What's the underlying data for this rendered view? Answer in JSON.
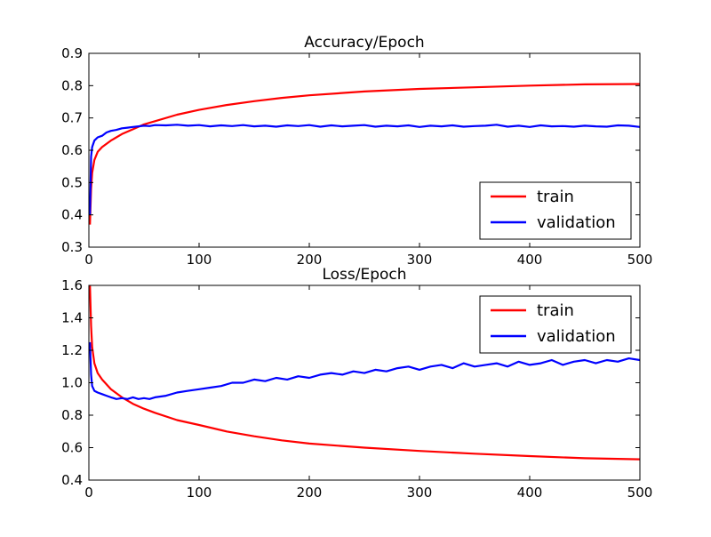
{
  "chart_data": [
    {
      "type": "line",
      "title": "Accuracy/Epoch",
      "xlabel": "",
      "ylabel": "",
      "xlim": [
        0,
        500
      ],
      "ylim": [
        0.3,
        0.9
      ],
      "xticks": [
        0,
        100,
        200,
        300,
        400,
        500
      ],
      "xtick_labels": [
        "0",
        "100",
        "200",
        "300",
        "400",
        "500"
      ],
      "yticks": [
        0.3,
        0.4,
        0.5,
        0.6,
        0.7,
        0.8,
        0.9
      ],
      "ytick_labels": [
        "0.3",
        "0.4",
        "0.5",
        "0.6",
        "0.7",
        "0.8",
        "0.9"
      ],
      "grid": false,
      "legend": "lower-right",
      "series": [
        {
          "name": "train",
          "color": "#ff0000",
          "x": [
            1,
            2,
            3,
            5,
            8,
            12,
            20,
            30,
            40,
            50,
            60,
            80,
            100,
            125,
            150,
            175,
            200,
            250,
            300,
            350,
            400,
            450,
            500
          ],
          "values": [
            0.37,
            0.48,
            0.53,
            0.57,
            0.595,
            0.61,
            0.63,
            0.65,
            0.665,
            0.68,
            0.69,
            0.71,
            0.725,
            0.74,
            0.752,
            0.762,
            0.77,
            0.782,
            0.79,
            0.795,
            0.8,
            0.804,
            0.805
          ]
        },
        {
          "name": "validation",
          "color": "#0000ff",
          "x": [
            1,
            2,
            3,
            5,
            8,
            12,
            16,
            20,
            25,
            30,
            35,
            40,
            45,
            50,
            55,
            60,
            70,
            80,
            90,
            100,
            110,
            120,
            130,
            140,
            150,
            160,
            170,
            180,
            190,
            200,
            210,
            220,
            230,
            240,
            250,
            260,
            270,
            280,
            290,
            300,
            310,
            320,
            330,
            340,
            350,
            360,
            370,
            380,
            390,
            400,
            410,
            420,
            430,
            440,
            450,
            460,
            470,
            480,
            490,
            500
          ],
          "values": [
            0.4,
            0.58,
            0.61,
            0.63,
            0.64,
            0.645,
            0.655,
            0.66,
            0.663,
            0.668,
            0.67,
            0.672,
            0.674,
            0.676,
            0.675,
            0.678,
            0.677,
            0.679,
            0.676,
            0.678,
            0.674,
            0.677,
            0.675,
            0.678,
            0.674,
            0.676,
            0.673,
            0.677,
            0.675,
            0.678,
            0.673,
            0.677,
            0.674,
            0.676,
            0.678,
            0.673,
            0.676,
            0.674,
            0.677,
            0.672,
            0.676,
            0.674,
            0.677,
            0.673,
            0.675,
            0.676,
            0.679,
            0.673,
            0.676,
            0.672,
            0.677,
            0.674,
            0.675,
            0.673,
            0.676,
            0.674,
            0.673,
            0.677,
            0.676,
            0.672
          ]
        }
      ]
    },
    {
      "type": "line",
      "title": "Loss/Epoch",
      "xlabel": "",
      "ylabel": "",
      "xlim": [
        0,
        500
      ],
      "ylim": [
        0.4,
        1.6
      ],
      "xticks": [
        0,
        100,
        200,
        300,
        400,
        500
      ],
      "xtick_labels": [
        "0",
        "100",
        "200",
        "300",
        "400",
        "500"
      ],
      "yticks": [
        0.4,
        0.6,
        0.8,
        1.0,
        1.2,
        1.4,
        1.6
      ],
      "ytick_labels": [
        "0.4",
        "0.6",
        "0.8",
        "1.0",
        "1.2",
        "1.4",
        "1.6"
      ],
      "grid": false,
      "legend": "upper-right",
      "series": [
        {
          "name": "train",
          "color": "#ff0000",
          "x": [
            1,
            2,
            3,
            5,
            8,
            12,
            20,
            30,
            40,
            50,
            60,
            80,
            100,
            125,
            150,
            175,
            200,
            250,
            300,
            350,
            400,
            450,
            500
          ],
          "values": [
            1.6,
            1.35,
            1.22,
            1.12,
            1.06,
            1.02,
            0.96,
            0.91,
            0.87,
            0.84,
            0.815,
            0.77,
            0.74,
            0.7,
            0.67,
            0.645,
            0.625,
            0.6,
            0.58,
            0.563,
            0.548,
            0.535,
            0.528
          ]
        },
        {
          "name": "validation",
          "color": "#0000ff",
          "x": [
            1,
            2,
            3,
            5,
            8,
            12,
            16,
            20,
            25,
            30,
            35,
            40,
            45,
            50,
            55,
            60,
            70,
            80,
            90,
            100,
            110,
            120,
            130,
            140,
            150,
            160,
            170,
            180,
            190,
            200,
            210,
            220,
            230,
            240,
            250,
            260,
            270,
            280,
            290,
            300,
            310,
            320,
            330,
            340,
            350,
            360,
            370,
            380,
            390,
            400,
            410,
            420,
            430,
            440,
            450,
            460,
            470,
            480,
            490,
            500
          ],
          "values": [
            1.25,
            1.05,
            0.98,
            0.95,
            0.94,
            0.93,
            0.92,
            0.91,
            0.9,
            0.905,
            0.9,
            0.91,
            0.9,
            0.905,
            0.9,
            0.91,
            0.92,
            0.94,
            0.95,
            0.96,
            0.97,
            0.98,
            1.0,
            1.0,
            1.02,
            1.01,
            1.03,
            1.02,
            1.04,
            1.03,
            1.05,
            1.06,
            1.05,
            1.07,
            1.06,
            1.08,
            1.07,
            1.09,
            1.1,
            1.08,
            1.1,
            1.11,
            1.09,
            1.12,
            1.1,
            1.11,
            1.12,
            1.1,
            1.13,
            1.11,
            1.12,
            1.14,
            1.11,
            1.13,
            1.14,
            1.12,
            1.14,
            1.13,
            1.15,
            1.14
          ]
        }
      ]
    }
  ]
}
